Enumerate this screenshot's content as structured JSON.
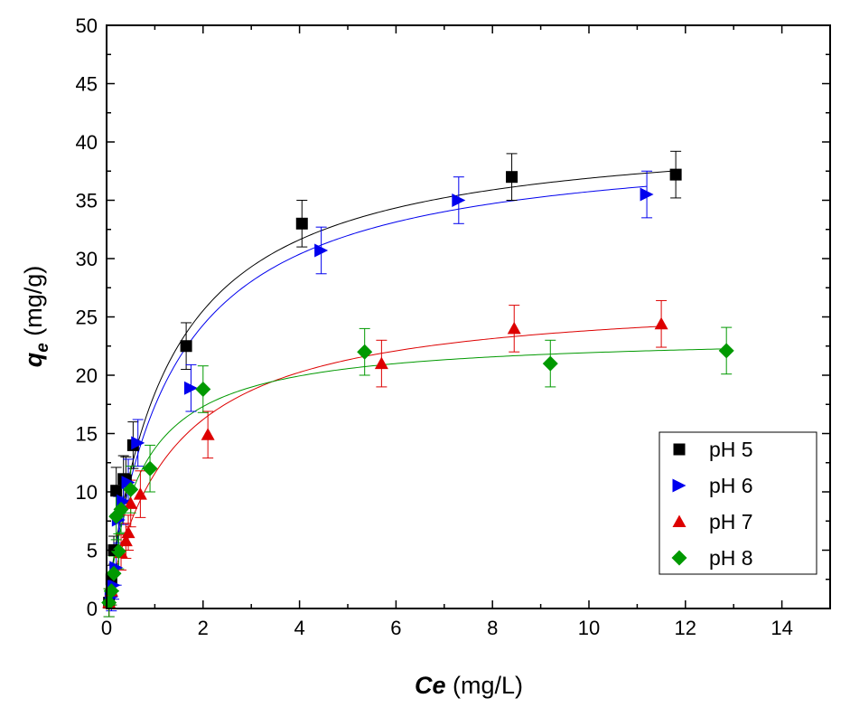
{
  "chart_data": {
    "type": "scatter",
    "title": "",
    "xlabel": {
      "symbol": "Ce",
      "unit": " (mg/L)"
    },
    "ylabel": {
      "symbol": "q",
      "subscript": "e",
      "unit": " (mg/g)"
    },
    "xlim": [
      0,
      15
    ],
    "ylim": [
      0,
      50
    ],
    "xticks": [
      0,
      2,
      4,
      6,
      8,
      10,
      12,
      14
    ],
    "yticks": [
      0,
      5,
      10,
      15,
      20,
      25,
      30,
      35,
      40,
      45,
      50
    ],
    "grid": false,
    "legend_position": "bottom-right",
    "series": [
      {
        "name": "pH 5",
        "marker": "square",
        "color": "#000000",
        "x": [
          0.05,
          0.1,
          0.15,
          0.2,
          0.35,
          0.4,
          0.55,
          1.65,
          4.05,
          8.4,
          11.8
        ],
        "y": [
          0.5,
          2.5,
          5.0,
          10.1,
          11.1,
          11.0,
          14.0,
          22.5,
          33.0,
          37.0,
          37.2
        ],
        "err": [
          1.2,
          1.2,
          1.2,
          2.0,
          2.0,
          2.0,
          2.0,
          2.0,
          2.0,
          2.0,
          2.0
        ],
        "fit": {
          "model": "langmuir",
          "qmax": 41.5,
          "K": 0.8,
          "xmax": 11.8
        }
      },
      {
        "name": "pH 6",
        "marker": "triangle-right",
        "color": "#0000ee",
        "x": [
          0.1,
          0.15,
          0.2,
          0.25,
          0.35,
          0.45,
          0.65,
          1.75,
          4.45,
          7.3,
          11.2
        ],
        "y": [
          1.0,
          2.0,
          3.5,
          7.6,
          9.2,
          10.8,
          14.2,
          18.9,
          30.7,
          35.0,
          35.5
        ],
        "err": [
          1.2,
          1.2,
          1.5,
          2.0,
          2.0,
          2.0,
          2.0,
          2.0,
          2.0,
          2.0,
          2.0
        ],
        "fit": {
          "model": "langmuir",
          "qmax": 40.5,
          "K": 0.75,
          "xmax": 11.2
        }
      },
      {
        "name": "pH 7",
        "marker": "triangle-up",
        "color": "#dd0000",
        "x": [
          0.05,
          0.1,
          0.3,
          0.4,
          0.45,
          0.5,
          0.7,
          2.1,
          5.7,
          8.45,
          11.5
        ],
        "y": [
          0.5,
          1.5,
          4.8,
          5.8,
          6.5,
          9.0,
          9.8,
          14.9,
          21.0,
          24.0,
          24.4
        ],
        "err": [
          1.2,
          1.2,
          1.5,
          1.5,
          1.5,
          2.0,
          2.0,
          2.0,
          2.0,
          2.0,
          2.0
        ],
        "fit": {
          "model": "langmuir",
          "qmax": 27.0,
          "K": 0.75,
          "xmax": 11.5
        }
      },
      {
        "name": "pH 8",
        "marker": "diamond",
        "color": "#009900",
        "x": [
          0.05,
          0.1,
          0.15,
          0.2,
          0.25,
          0.3,
          0.5,
          0.9,
          2.0,
          5.35,
          9.2,
          12.85
        ],
        "y": [
          0.5,
          1.5,
          3.0,
          7.9,
          4.9,
          8.5,
          10.2,
          12.0,
          18.8,
          22.0,
          21.0,
          22.1
        ],
        "err": [
          1.2,
          1.2,
          1.5,
          2.0,
          1.5,
          2.0,
          2.0,
          2.0,
          2.0,
          2.0,
          2.0,
          2.0
        ],
        "fit": {
          "model": "langmuir",
          "qmax": 23.5,
          "K": 1.4,
          "xmax": 12.85
        }
      }
    ]
  }
}
